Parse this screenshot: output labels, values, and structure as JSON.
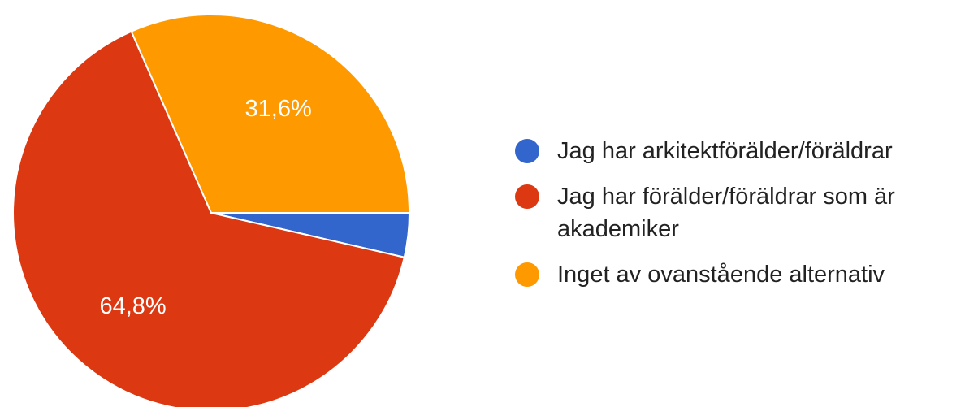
{
  "chart_data": {
    "type": "pie",
    "slices": [
      {
        "name": "Jag har arkitektförälder/föräldrar",
        "value": 3.6,
        "color": "#3366cc",
        "label": ""
      },
      {
        "name": "Jag har förälder/föräldrar som är akademiker",
        "value": 64.8,
        "color": "#dc3912",
        "label": "64,8%"
      },
      {
        "name": "Inget av ovanstående alternativ",
        "value": 31.6,
        "color": "#ff9900",
        "label": "31,6%"
      }
    ],
    "legend_position": "right"
  }
}
